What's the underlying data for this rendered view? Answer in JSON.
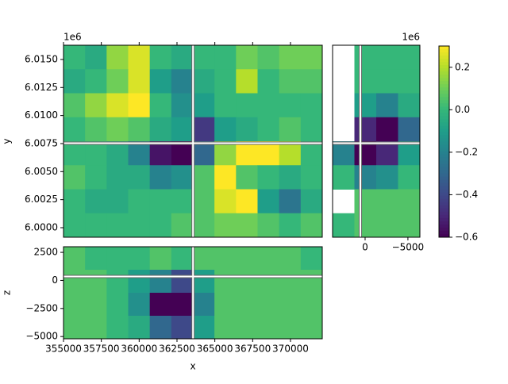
{
  "chart_data": [
    {
      "type": "heatmap",
      "ylabel": "y",
      "offset_label": "1e6",
      "xlim": [
        355000,
        372100
      ],
      "ylim": [
        5999150,
        6016270
      ],
      "xticks": [
        355000,
        357500,
        360000,
        362500,
        365000,
        367500,
        370000
      ],
      "yticks": [
        {
          "value": 6000000,
          "label": "6.0000"
        },
        {
          "value": 6002500,
          "label": "6.0025"
        },
        {
          "value": 6005000,
          "label": "6.0050"
        },
        {
          "value": 6007500,
          "label": "6.0075"
        },
        {
          "value": 6010000,
          "label": "6.0100"
        },
        {
          "value": 6012500,
          "label": "6.0125"
        },
        {
          "value": 6015000,
          "label": "6.0150"
        }
      ],
      "slice_x": 363560,
      "slice_y": 6007530,
      "clim": [
        -0.6,
        0.3
      ],
      "grid": [
        [
          0.0,
          -0.05,
          0.15,
          0.25,
          0.0,
          -0.05,
          0.0,
          0.0,
          0.1,
          0.05,
          0.1,
          0.1
        ],
        [
          -0.05,
          0.0,
          0.1,
          0.25,
          -0.1,
          -0.2,
          -0.05,
          0.0,
          0.2,
          0.0,
          0.05,
          0.05
        ],
        [
          0.05,
          0.15,
          0.25,
          0.3,
          0.0,
          -0.15,
          -0.1,
          0.0,
          0.0,
          0.0,
          0.0,
          0.0
        ],
        [
          0.0,
          0.05,
          0.1,
          0.05,
          -0.05,
          -0.1,
          -0.45,
          -0.1,
          -0.05,
          0.0,
          0.05,
          0.0
        ],
        [
          0.0,
          0.0,
          -0.05,
          -0.2,
          -0.55,
          -0.6,
          -0.3,
          0.15,
          0.3,
          0.3,
          0.2,
          0.0
        ],
        [
          0.05,
          0.0,
          -0.05,
          -0.05,
          -0.2,
          -0.15,
          0.05,
          0.3,
          0.05,
          0.0,
          -0.05,
          0.0
        ],
        [
          0.0,
          -0.05,
          -0.05,
          0.0,
          0.0,
          0.0,
          0.05,
          0.25,
          0.3,
          -0.1,
          -0.25,
          -0.05
        ],
        [
          0.0,
          0.0,
          0.0,
          0.0,
          0.0,
          0.05,
          0.05,
          0.1,
          0.1,
          0.05,
          0.0,
          0.05
        ]
      ],
      "colorbar": {
        "lim": [
          -0.6,
          0.3
        ],
        "ticks": [
          {
            "value": -0.6,
            "label": "−0.6"
          },
          {
            "value": -0.4,
            "label": "−0.4"
          },
          {
            "value": -0.2,
            "label": "−0.2"
          },
          {
            "value": 0.0,
            "label": "0.0"
          },
          0.2
        ]
      }
    },
    {
      "type": "heatmap",
      "offset_label": "1e6",
      "xlim": [
        3800,
        -6400
      ],
      "ylim": [
        5999150,
        6016270
      ],
      "xticks": [
        0,
        {
          "value": -5000,
          "label": "−5000"
        }
      ],
      "slice_x": 550,
      "slice_y": 6007530,
      "clim": [
        -0.6,
        0.3
      ],
      "grid": [
        [
          null,
          0.0,
          0.0,
          0.0
        ],
        [
          null,
          0.0,
          0.0,
          0.0
        ],
        [
          null,
          -0.1,
          -0.2,
          -0.05
        ],
        [
          null,
          -0.5,
          -0.6,
          -0.3
        ],
        [
          -0.2,
          -0.6,
          -0.5,
          -0.1
        ],
        [
          0.0,
          -0.2,
          -0.15,
          0.0
        ],
        [
          null,
          0.05,
          0.05,
          0.05
        ],
        [
          0.0,
          0.05,
          0.05,
          0.05
        ]
      ]
    },
    {
      "type": "heatmap",
      "xlabel": "x",
      "ylabel": "z",
      "xlim": [
        355000,
        372100
      ],
      "ylim": [
        -5200,
        3000
      ],
      "xticks": [
        355000,
        357500,
        360000,
        362500,
        365000,
        367500,
        370000
      ],
      "yticks": [
        {
          "value": -5000,
          "label": "−5000"
        },
        {
          "value": -2500,
          "label": "−2500"
        },
        0,
        2500
      ],
      "slice_x": 363560,
      "slice_y": 350,
      "clim": [
        -0.6,
        0.3
      ],
      "grid": [
        [
          0.05,
          0.0,
          0.0,
          0.0,
          0.05,
          0.0,
          0.05,
          0.05,
          0.05,
          0.05,
          0.05,
          0.0
        ],
        [
          0.05,
          0.05,
          0.0,
          -0.1,
          -0.2,
          -0.4,
          -0.1,
          0.05,
          0.05,
          0.05,
          0.05,
          0.05
        ],
        [
          0.05,
          0.05,
          0.0,
          -0.15,
          -0.6,
          -0.6,
          -0.2,
          0.05,
          0.05,
          0.05,
          0.05,
          0.05
        ],
        [
          0.05,
          0.05,
          0.0,
          -0.05,
          -0.3,
          -0.4,
          -0.1,
          0.05,
          0.05,
          0.05,
          0.05,
          0.05
        ]
      ]
    }
  ]
}
